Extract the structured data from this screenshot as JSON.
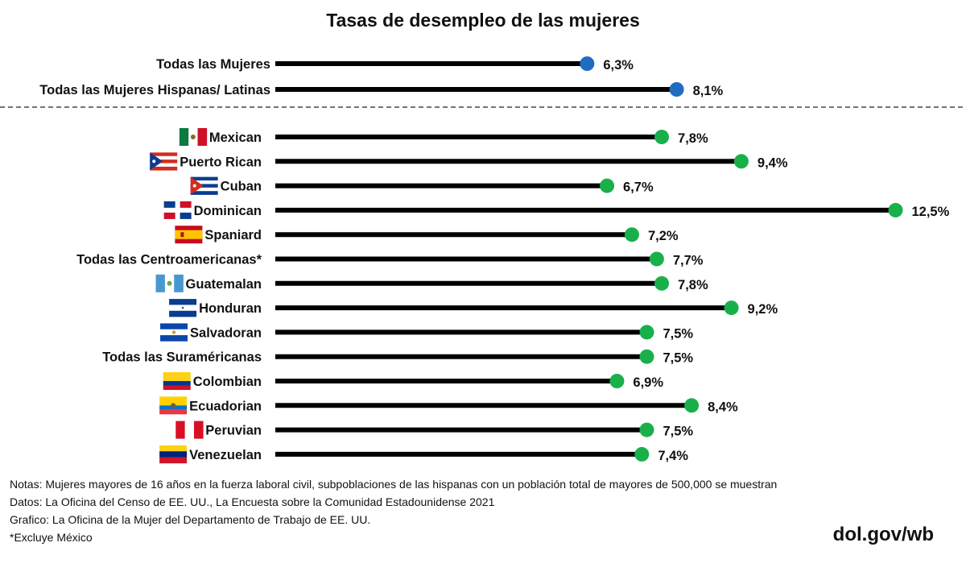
{
  "chart_data": {
    "type": "lollipop",
    "title": "Tasas de desempleo de las mujeres",
    "xlim": [
      0,
      12.5
    ],
    "grid": false,
    "colors": {
      "overall": "#1f6dc1",
      "subgroup": "#19b04b",
      "bar": "#000000"
    },
    "overall": [
      {
        "label": "Todas las Mujeres",
        "value": 6.3,
        "display": "6,3%"
      },
      {
        "label": "Todas las Mujeres Hispanas/ Latinas",
        "value": 8.1,
        "display": "8,1%"
      }
    ],
    "subgroups": [
      {
        "label": "Mexican",
        "flag": "mexico-flag",
        "value": 7.8,
        "display": "7,8%"
      },
      {
        "label": "Puerto Rican",
        "flag": "puerto-rico-flag",
        "value": 9.4,
        "display": "9,4%"
      },
      {
        "label": "Cuban",
        "flag": "cuba-flag",
        "value": 6.7,
        "display": "6,7%"
      },
      {
        "label": "Dominican",
        "flag": "dominican-republic-flag",
        "value": 12.5,
        "display": "12,5%"
      },
      {
        "label": "Spaniard",
        "flag": "spain-flag",
        "value": 7.2,
        "display": "7,2%"
      },
      {
        "label": "Todas las Centroamericanas*",
        "flag": null,
        "value": 7.7,
        "display": "7,7%"
      },
      {
        "label": "Guatemalan",
        "flag": "guatemala-flag",
        "value": 7.8,
        "display": "7,8%"
      },
      {
        "label": "Honduran",
        "flag": "honduras-flag",
        "value": 9.2,
        "display": "9,2%"
      },
      {
        "label": "Salvadoran",
        "flag": "el-salvador-flag",
        "value": 7.5,
        "display": "7,5%"
      },
      {
        "label": "Todas las Suraméricanas",
        "flag": null,
        "value": 7.5,
        "display": "7,5%"
      },
      {
        "label": "Colombian",
        "flag": "colombia-flag",
        "value": 6.9,
        "display": "6,9%"
      },
      {
        "label": "Ecuadorian",
        "flag": "ecuador-flag",
        "value": 8.4,
        "display": "8,4%"
      },
      {
        "label": "Peruvian",
        "flag": "peru-flag",
        "value": 7.5,
        "display": "7,5%"
      },
      {
        "label": "Venezuelan",
        "flag": "venezuela-flag",
        "value": 7.4,
        "display": "7,4%"
      }
    ]
  },
  "notes": {
    "notas": "Notas: Mujeres mayores de 16 años en la fuerza laboral civil, subpoblaciones de las hispanas con un población total de mayores de 500,000 se muestran",
    "datos": "Datos: La Oficina del Censo de EE. UU., La Encuesta sobre la Comunidad Estadounidense 2021",
    "grafico": "Grafico: La Oficina de la Mujer del Departamento de Trabajo de EE. UU.",
    "excluye": "*Excluye México"
  },
  "brand": "dol.gov/wb"
}
